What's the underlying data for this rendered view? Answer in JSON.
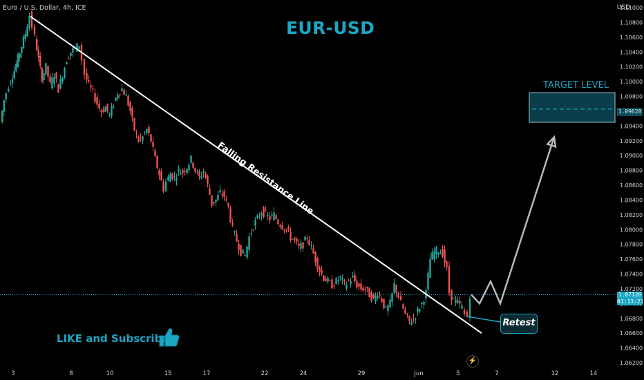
{
  "header": {
    "symbol": "Euro / U.S. Dollar, 4h, ICE",
    "currency": "USD",
    "title": "EUR-USD"
  },
  "annotations": {
    "target_label": "TARGET LEVEL",
    "trendline_label": "Falling Resistance Line",
    "retest_label": "Retest",
    "cta": "LIKE and Subscribe"
  },
  "price_tag": {
    "price": "1.07120",
    "countdown": "01:13:21"
  },
  "target_tag": {
    "price": "1.09628"
  },
  "icons": [
    "thumbs-up-icon",
    "lightning-icon"
  ],
  "colors": {
    "up": "#26a69a",
    "down": "#ef5350",
    "accent": "#1ca6c4",
    "target_box": "#0a3e4b"
  },
  "chart_data": {
    "type": "candlestick",
    "title": "EUR-USD",
    "ylim": [
      1.062,
      1.11
    ],
    "y_ticks": [
      "1.11000",
      "1.10800",
      "1.10600",
      "1.10400",
      "1.10200",
      "1.10000",
      "1.09800",
      "1.09600",
      "1.09400",
      "1.09200",
      "1.09000",
      "1.08800",
      "1.08600",
      "1.08400",
      "1.08200",
      "1.08000",
      "1.07800",
      "1.07600",
      "1.07400",
      "1.07200",
      "1.07000",
      "1.06800",
      "1.06600",
      "1.06400",
      "1.06200"
    ],
    "x_ticks": [
      "3",
      "8",
      "10",
      "15",
      "17",
      "22",
      "24",
      "29",
      "Jun",
      "5",
      "7",
      "12",
      "14"
    ],
    "price_points": [
      [
        0,
        1.0945
      ],
      [
        5,
        1.0975
      ],
      [
        12,
        1.0995
      ],
      [
        20,
        1.1015
      ],
      [
        28,
        1.104
      ],
      [
        36,
        1.1065
      ],
      [
        42,
        1.109
      ],
      [
        46,
        1.1075
      ],
      [
        50,
        1.106
      ],
      [
        55,
        1.103
      ],
      [
        60,
        1.1005
      ],
      [
        66,
        1.102
      ],
      [
        72,
        1.0995
      ],
      [
        78,
        1.101
      ],
      [
        84,
        1.099
      ],
      [
        90,
        1.101
      ],
      [
        96,
        1.103
      ],
      [
        102,
        1.104
      ],
      [
        108,
        1.1045
      ],
      [
        114,
        1.105
      ],
      [
        118,
        1.103
      ],
      [
        122,
        1.101
      ],
      [
        128,
        1.0995
      ],
      [
        134,
        1.0985
      ],
      [
        140,
        1.097
      ],
      [
        146,
        1.096
      ],
      [
        152,
        1.0965
      ],
      [
        158,
        1.0955
      ],
      [
        164,
        1.097
      ],
      [
        170,
        1.0985
      ],
      [
        176,
        1.099
      ],
      [
        182,
        1.098
      ],
      [
        188,
        1.096
      ],
      [
        194,
        1.0935
      ],
      [
        200,
        1.092
      ],
      [
        206,
        1.0925
      ],
      [
        212,
        1.0935
      ],
      [
        218,
        1.092
      ],
      [
        224,
        1.0895
      ],
      [
        230,
        1.0875
      ],
      [
        236,
        1.0855
      ],
      [
        240,
        1.0865
      ],
      [
        246,
        1.0875
      ],
      [
        252,
        1.087
      ],
      [
        258,
        1.088
      ],
      [
        264,
        1.0878
      ],
      [
        270,
        1.0885
      ],
      [
        276,
        1.0895
      ],
      [
        282,
        1.088
      ],
      [
        288,
        1.087
      ],
      [
        294,
        1.088
      ],
      [
        300,
        1.086
      ],
      [
        306,
        1.0835
      ],
      [
        312,
        1.084
      ],
      [
        318,
        1.085
      ],
      [
        324,
        1.0845
      ],
      [
        330,
        1.083
      ],
      [
        336,
        1.08
      ],
      [
        342,
        1.0785
      ],
      [
        348,
        1.077
      ],
      [
        354,
        1.0765
      ],
      [
        360,
        1.079
      ],
      [
        366,
        1.0805
      ],
      [
        372,
        1.0815
      ],
      [
        378,
        1.0825
      ],
      [
        384,
        1.082
      ],
      [
        390,
        1.0815
      ],
      [
        396,
        1.082
      ],
      [
        402,
        1.081
      ],
      [
        408,
        1.0805
      ],
      [
        414,
        1.08
      ],
      [
        420,
        1.079
      ],
      [
        426,
        1.0785
      ],
      [
        432,
        1.0775
      ],
      [
        438,
        1.078
      ],
      [
        444,
        1.079
      ],
      [
        450,
        1.0775
      ],
      [
        456,
        1.076
      ],
      [
        462,
        1.0745
      ],
      [
        468,
        1.0735
      ],
      [
        474,
        1.073
      ],
      [
        480,
        1.0725
      ],
      [
        486,
        1.073
      ],
      [
        492,
        1.0735
      ],
      [
        498,
        1.0725
      ],
      [
        504,
        1.073
      ],
      [
        510,
        1.0735
      ],
      [
        516,
        1.0725
      ],
      [
        522,
        1.072
      ],
      [
        528,
        1.072
      ],
      [
        534,
        1.0712
      ],
      [
        540,
        1.0705
      ],
      [
        546,
        1.0715
      ],
      [
        552,
        1.0705
      ],
      [
        558,
        1.069
      ],
      [
        564,
        1.07
      ],
      [
        570,
        1.0725
      ],
      [
        576,
        1.071
      ],
      [
        580,
        1.07
      ],
      [
        586,
        1.0685
      ],
      [
        592,
        1.0675
      ],
      [
        598,
        1.068
      ],
      [
        604,
        1.069
      ],
      [
        610,
        1.07
      ],
      [
        616,
        1.0715
      ],
      [
        622,
        1.076
      ],
      [
        628,
        1.077
      ],
      [
        634,
        1.0772
      ],
      [
        640,
        1.0768
      ],
      [
        646,
        1.0745
      ],
      [
        650,
        1.0715
      ],
      [
        656,
        1.0705
      ],
      [
        662,
        1.07
      ],
      [
        668,
        1.0695
      ],
      [
        672,
        1.0685
      ],
      [
        676,
        1.0682
      ],
      [
        680,
        1.0712
      ]
    ],
    "trendline": [
      [
        42,
        1.1088
      ],
      [
        695,
        1.066
      ]
    ],
    "target_zone": {
      "top": 1.0985,
      "bottom": 1.0945,
      "level": 1.09628
    },
    "projection": [
      [
        680,
        1.0712
      ],
      [
        692,
        1.07
      ],
      [
        708,
        1.073
      ],
      [
        722,
        1.07
      ],
      [
        800,
        1.0925
      ]
    ],
    "current_price": 1.0712
  }
}
